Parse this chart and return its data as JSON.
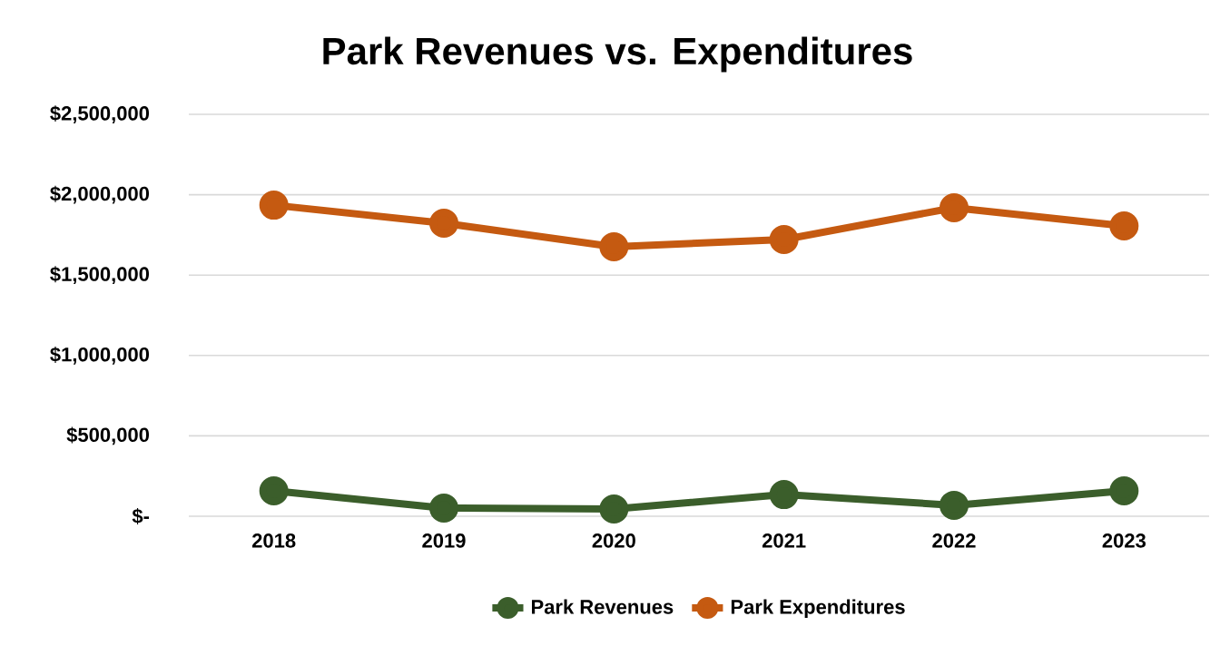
{
  "chart_data": {
    "type": "line",
    "title": "Park Revenues vs. Expenditures",
    "categories": [
      "2018",
      "2019",
      "2020",
      "2021",
      "2022",
      "2023"
    ],
    "series": [
      {
        "name": "Park Revenues",
        "color": "#3b5e2b",
        "values": [
          158000,
          51000,
          45000,
          135000,
          68000,
          158000
        ]
      },
      {
        "name": "Park Expenditures",
        "color": "#c55a11",
        "values": [
          1935000,
          1823000,
          1676000,
          1721000,
          1919000,
          1806000
        ]
      }
    ],
    "ylim": [
      0,
      2500000
    ],
    "yticks": [
      {
        "value": 0,
        "label": "$-"
      },
      {
        "value": 500000,
        "label": "$500,000"
      },
      {
        "value": 1000000,
        "label": "$1,000,000"
      },
      {
        "value": 1500000,
        "label": "$1,500,000"
      },
      {
        "value": 2000000,
        "label": "$2,000,000"
      },
      {
        "value": 2500000,
        "label": "$2,500,000"
      }
    ],
    "grid": "y",
    "legend": "bottom",
    "marker": "circle",
    "line_style": "solid"
  }
}
